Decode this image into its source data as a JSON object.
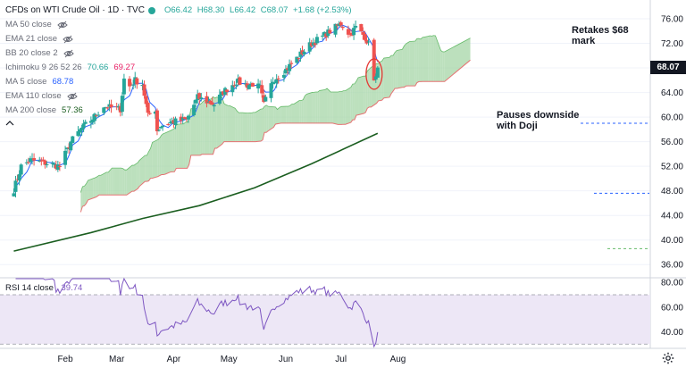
{
  "header": {
    "title": "CFDs on WTI Crude Oil · 1D · TVC",
    "ohlc": {
      "open": "O66.42",
      "high": "H68.30",
      "low": "L66.42",
      "close": "C68.07",
      "change": "+1.68 (+2.53%)"
    }
  },
  "indicators": [
    {
      "name": "MA 50 close",
      "value": "",
      "color": "#6a6d78"
    },
    {
      "name": "EMA 21 close",
      "value": "",
      "color": "#6a6d78"
    },
    {
      "name": "BB 20 close 2",
      "value": "",
      "color": "#6a6d78"
    },
    {
      "name": "Ichimoku 9 26 52 26",
      "value": "70.66",
      "value2": "69.27",
      "color": "#26a69a",
      "color2": "#e91e63"
    },
    {
      "name": "MA 5 close",
      "value": "68.78",
      "color": "#2962ff"
    },
    {
      "name": "EMA 110 close",
      "value": "",
      "color": "#6a6d78"
    },
    {
      "name": "MA 200 close",
      "value": "57.36",
      "color": "#1b5e20"
    }
  ],
  "rsi": {
    "label": "RSI 14 close",
    "value": "39.74"
  },
  "annotations": {
    "top": [
      "Retakes $68",
      "mark"
    ],
    "bottom": [
      "Pauses downside",
      "with Doji"
    ]
  },
  "last_price": "68.07",
  "colors": {
    "up": "#26a69a",
    "down": "#ef5350",
    "cloud_bull": "#a5d6a7",
    "cloud_bear": "#ef9a9a",
    "ma5": "#2962ff",
    "ma200": "#1b5e20",
    "rsi": "#7e57c2",
    "rsi_band": "#ede7f6",
    "senkou_b": "#e57373"
  },
  "chart_data": [
    {
      "type": "candlestick",
      "title": "CFDs on WTI Crude Oil · 1D · TVC",
      "x_tick_labels": [
        "Feb",
        "Mar",
        "Apr",
        "May",
        "Jun",
        "Jul",
        "Aug"
      ],
      "y_tick_labels": [
        "36.00",
        "40.00",
        "44.00",
        "48.00",
        "52.00",
        "56.00",
        "60.00",
        "64.00",
        "68.00",
        "72.00",
        "76.00"
      ],
      "ylim": [
        34.0,
        77.6
      ],
      "waypoints": [
        [
          "2021-01-04",
          48.2
        ],
        [
          "2021-01-08",
          52.0
        ],
        [
          "2021-01-13",
          53.0
        ],
        [
          "2021-01-20",
          52.6
        ],
        [
          "2021-01-26",
          52.2
        ],
        [
          "2021-01-29",
          52.0
        ],
        [
          "2021-02-04",
          56.0
        ],
        [
          "2021-02-10",
          58.2
        ],
        [
          "2021-02-16",
          59.8
        ],
        [
          "2021-02-22",
          61.8
        ],
        [
          "2021-02-26",
          61.5
        ],
        [
          "2021-03-03",
          61.3
        ],
        [
          "2021-03-05",
          66.2
        ],
        [
          "2021-03-08",
          65.0
        ],
        [
          "2021-03-11",
          66.0
        ],
        [
          "2021-03-15",
          65.4
        ],
        [
          "2021-03-18",
          60.2
        ],
        [
          "2021-03-22",
          61.3
        ],
        [
          "2021-03-23",
          57.8
        ],
        [
          "2021-03-25",
          58.6
        ],
        [
          "2021-03-31",
          59.2
        ],
        [
          "2021-04-08",
          59.6
        ],
        [
          "2021-04-14",
          63.2
        ],
        [
          "2021-04-20",
          62.4
        ],
        [
          "2021-04-23",
          62.1
        ],
        [
          "2021-04-28",
          64.1
        ],
        [
          "2021-05-05",
          65.8
        ],
        [
          "2021-05-11",
          65.2
        ],
        [
          "2021-05-14",
          65.4
        ],
        [
          "2021-05-18",
          64.8
        ],
        [
          "2021-05-20",
          62.0
        ],
        [
          "2021-05-25",
          66.0
        ],
        [
          "2021-06-01",
          67.7
        ],
        [
          "2021-06-08",
          69.9
        ],
        [
          "2021-06-15",
          72.0
        ],
        [
          "2021-06-21",
          73.1
        ],
        [
          "2021-06-25",
          74.0
        ],
        [
          "2021-07-01",
          75.2
        ],
        [
          "2021-07-06",
          73.4
        ],
        [
          "2021-07-09",
          74.6
        ],
        [
          "2021-07-14",
          73.1
        ],
        [
          "2021-07-16",
          71.8
        ],
        [
          "2021-07-19",
          66.4
        ],
        [
          "2021-07-20",
          66.4
        ],
        [
          "2021-07-21",
          68.07
        ]
      ],
      "last_candle": {
        "open": 66.42,
        "high": 68.3,
        "low": 66.42,
        "close": 68.07
      }
    },
    {
      "type": "area",
      "name": "Ichimoku cloud",
      "ichimoku_last": {
        "leading_span_a": 70.66,
        "leading_span_b": 69.27
      }
    },
    {
      "type": "line",
      "name": "MA 5 close",
      "last_value": 68.78
    },
    {
      "type": "line",
      "name": "MA 200 close",
      "points": [
        [
          "2021-01-04",
          38.2
        ],
        [
          "2021-02-15",
          41.2
        ],
        [
          "2021-03-15",
          43.5
        ],
        [
          "2021-04-15",
          45.6
        ],
        [
          "2021-05-15",
          48.5
        ],
        [
          "2021-06-15",
          52.4
        ],
        [
          "2021-07-21",
          57.36
        ]
      ]
    },
    {
      "type": "line",
      "name": "RSI 14 close",
      "ylim": [
        28,
        83
      ],
      "y_tick_labels": [
        "40.00",
        "60.00",
        "80.00"
      ],
      "bands": [
        30,
        70
      ],
      "last_value": 39.74
    }
  ]
}
